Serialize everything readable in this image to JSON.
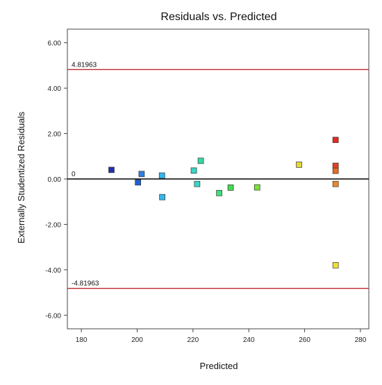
{
  "chart_data": {
    "type": "scatter",
    "title": "Residuals vs. Predicted",
    "xlabel": "Predicted",
    "ylabel": "Externally Studentized Residuals",
    "xlim": [
      175,
      283
    ],
    "ylim": [
      -6.6,
      6.6
    ],
    "x_ticks": [
      180,
      200,
      220,
      240,
      260,
      280
    ],
    "y_ticks": [
      6,
      4,
      2,
      0,
      -2,
      -4,
      -6
    ],
    "x_tick_labels": [
      "180",
      "200",
      "220",
      "240",
      "260",
      "280"
    ],
    "y_tick_labels": [
      "6.00",
      "4.00",
      "2.00",
      "0.00",
      "-2.00",
      "-4.00",
      "-6.00"
    ],
    "reference_lines": [
      {
        "label": "4.81963",
        "value": 4.81963,
        "color": "#c0282d"
      },
      {
        "label": "0",
        "value": 0,
        "color": "#000000"
      },
      {
        "label": "-4.81963",
        "value": -4.81963,
        "color": "#c0282d"
      }
    ],
    "points": [
      {
        "x": 190.8,
        "y": 0.4,
        "color": "#1f2fb5"
      },
      {
        "x": 200.3,
        "y": -0.15,
        "color": "#1f5fd0"
      },
      {
        "x": 201.6,
        "y": 0.22,
        "color": "#2f7fe0"
      },
      {
        "x": 208.9,
        "y": 0.15,
        "color": "#35b6ea"
      },
      {
        "x": 209.0,
        "y": -0.8,
        "color": "#35b6ea"
      },
      {
        "x": 220.3,
        "y": 0.37,
        "color": "#39d7c3"
      },
      {
        "x": 221.5,
        "y": -0.22,
        "color": "#39d7c3"
      },
      {
        "x": 222.8,
        "y": 0.8,
        "color": "#34d9a0"
      },
      {
        "x": 229.4,
        "y": -0.62,
        "color": "#3ee07a"
      },
      {
        "x": 233.5,
        "y": -0.38,
        "color": "#45d950"
      },
      {
        "x": 243.0,
        "y": -0.37,
        "color": "#7ce03a"
      },
      {
        "x": 258.0,
        "y": 0.63,
        "color": "#e6d735"
      },
      {
        "x": 271.1,
        "y": 1.72,
        "color": "#e52a20"
      },
      {
        "x": 271.1,
        "y": 0.58,
        "color": "#e04320"
      },
      {
        "x": 271.1,
        "y": 0.36,
        "color": "#e86a22"
      },
      {
        "x": 271.1,
        "y": -0.22,
        "color": "#e98a28"
      },
      {
        "x": 271.1,
        "y": -3.8,
        "color": "#f0e030"
      }
    ]
  }
}
